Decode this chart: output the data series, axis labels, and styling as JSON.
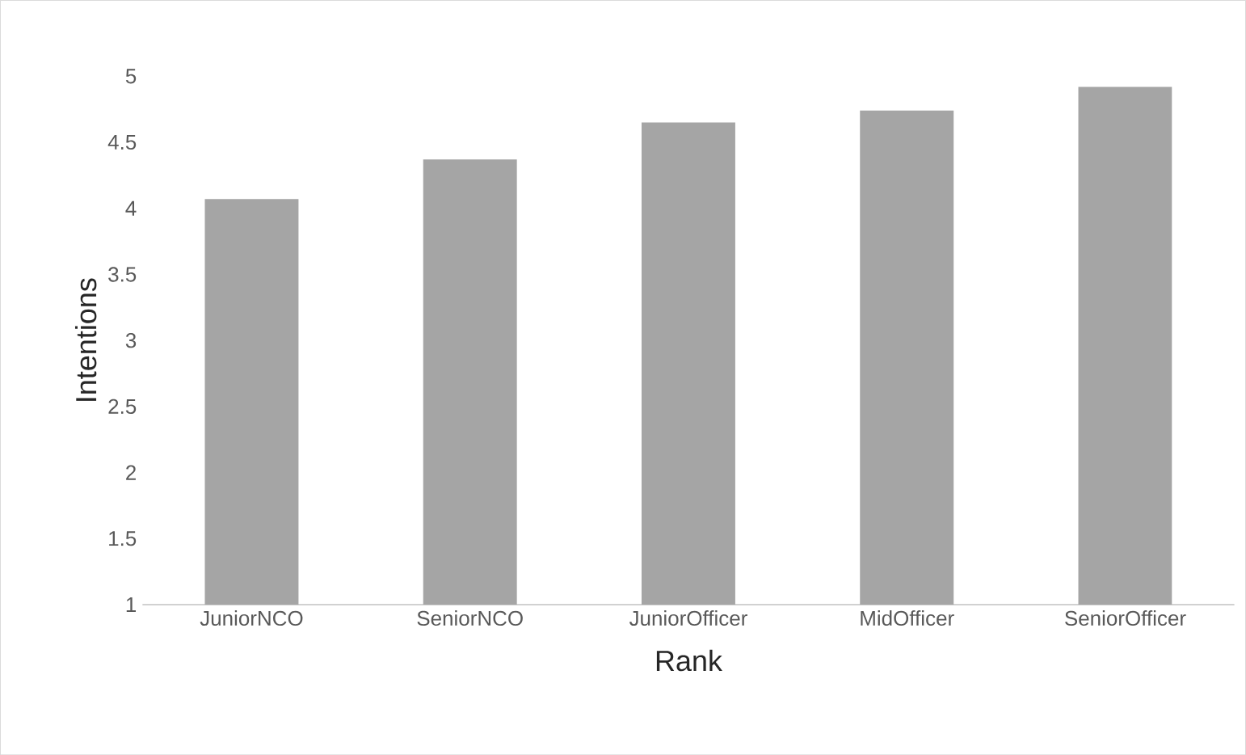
{
  "chart_data": {
    "type": "bar",
    "xlabel": "Rank",
    "ylabel": "Intentions",
    "categories": [
      "JuniorNCO",
      "SeniorNCO",
      "JuniorOfficer",
      "MidOfficer",
      "SeniorOfficer"
    ],
    "values": [
      4.07,
      4.37,
      4.65,
      4.74,
      4.92
    ],
    "color": "#a5a5a5",
    "ylim": [
      1,
      5
    ],
    "yticks": [
      1,
      1.5,
      2,
      2.5,
      3,
      3.5,
      4,
      4.5,
      5
    ]
  }
}
